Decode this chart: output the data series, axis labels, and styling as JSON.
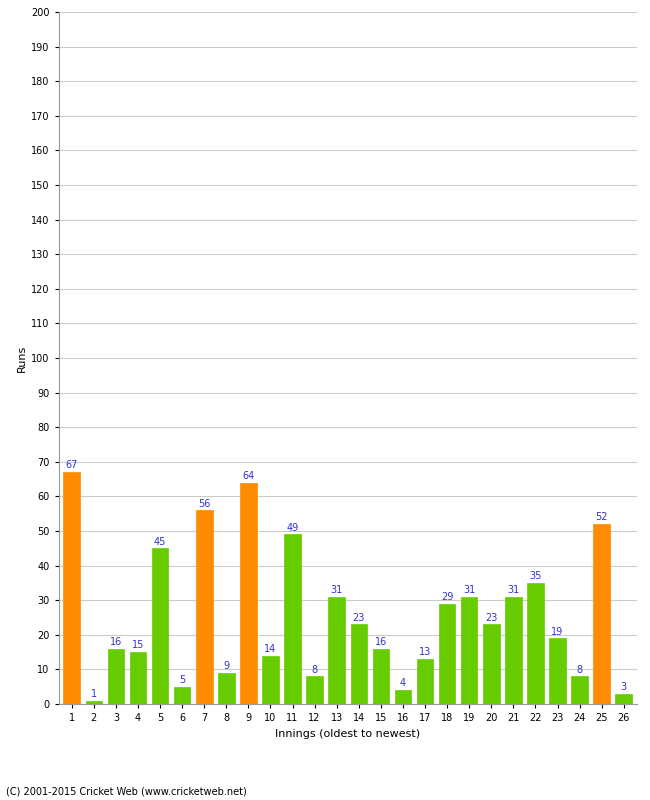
{
  "xlabel": "Innings (oldest to newest)",
  "ylabel": "Runs",
  "categories": [
    1,
    2,
    3,
    4,
    5,
    6,
    7,
    8,
    9,
    10,
    11,
    12,
    13,
    14,
    15,
    16,
    17,
    18,
    19,
    20,
    21,
    22,
    23,
    24,
    25,
    26
  ],
  "values": [
    67,
    1,
    16,
    15,
    45,
    5,
    56,
    9,
    64,
    14,
    49,
    8,
    31,
    23,
    16,
    4,
    13,
    29,
    31,
    23,
    31,
    35,
    19,
    8,
    52,
    3
  ],
  "colors": [
    "#ff8c00",
    "#66cc00",
    "#66cc00",
    "#66cc00",
    "#66cc00",
    "#66cc00",
    "#ff8c00",
    "#66cc00",
    "#ff8c00",
    "#66cc00",
    "#66cc00",
    "#66cc00",
    "#66cc00",
    "#66cc00",
    "#66cc00",
    "#66cc00",
    "#66cc00",
    "#66cc00",
    "#66cc00",
    "#66cc00",
    "#66cc00",
    "#66cc00",
    "#66cc00",
    "#66cc00",
    "#ff8c00",
    "#66cc00"
  ],
  "ylim": [
    0,
    200
  ],
  "yticks": [
    0,
    10,
    20,
    30,
    40,
    50,
    60,
    70,
    80,
    90,
    100,
    110,
    120,
    130,
    140,
    150,
    160,
    170,
    180,
    190,
    200
  ],
  "label_color": "#3333cc",
  "label_fontsize": 7,
  "background_color": "#ffffff",
  "grid_color": "#cccccc",
  "footer": "(C) 2001-2015 Cricket Web (www.cricketweb.net)"
}
